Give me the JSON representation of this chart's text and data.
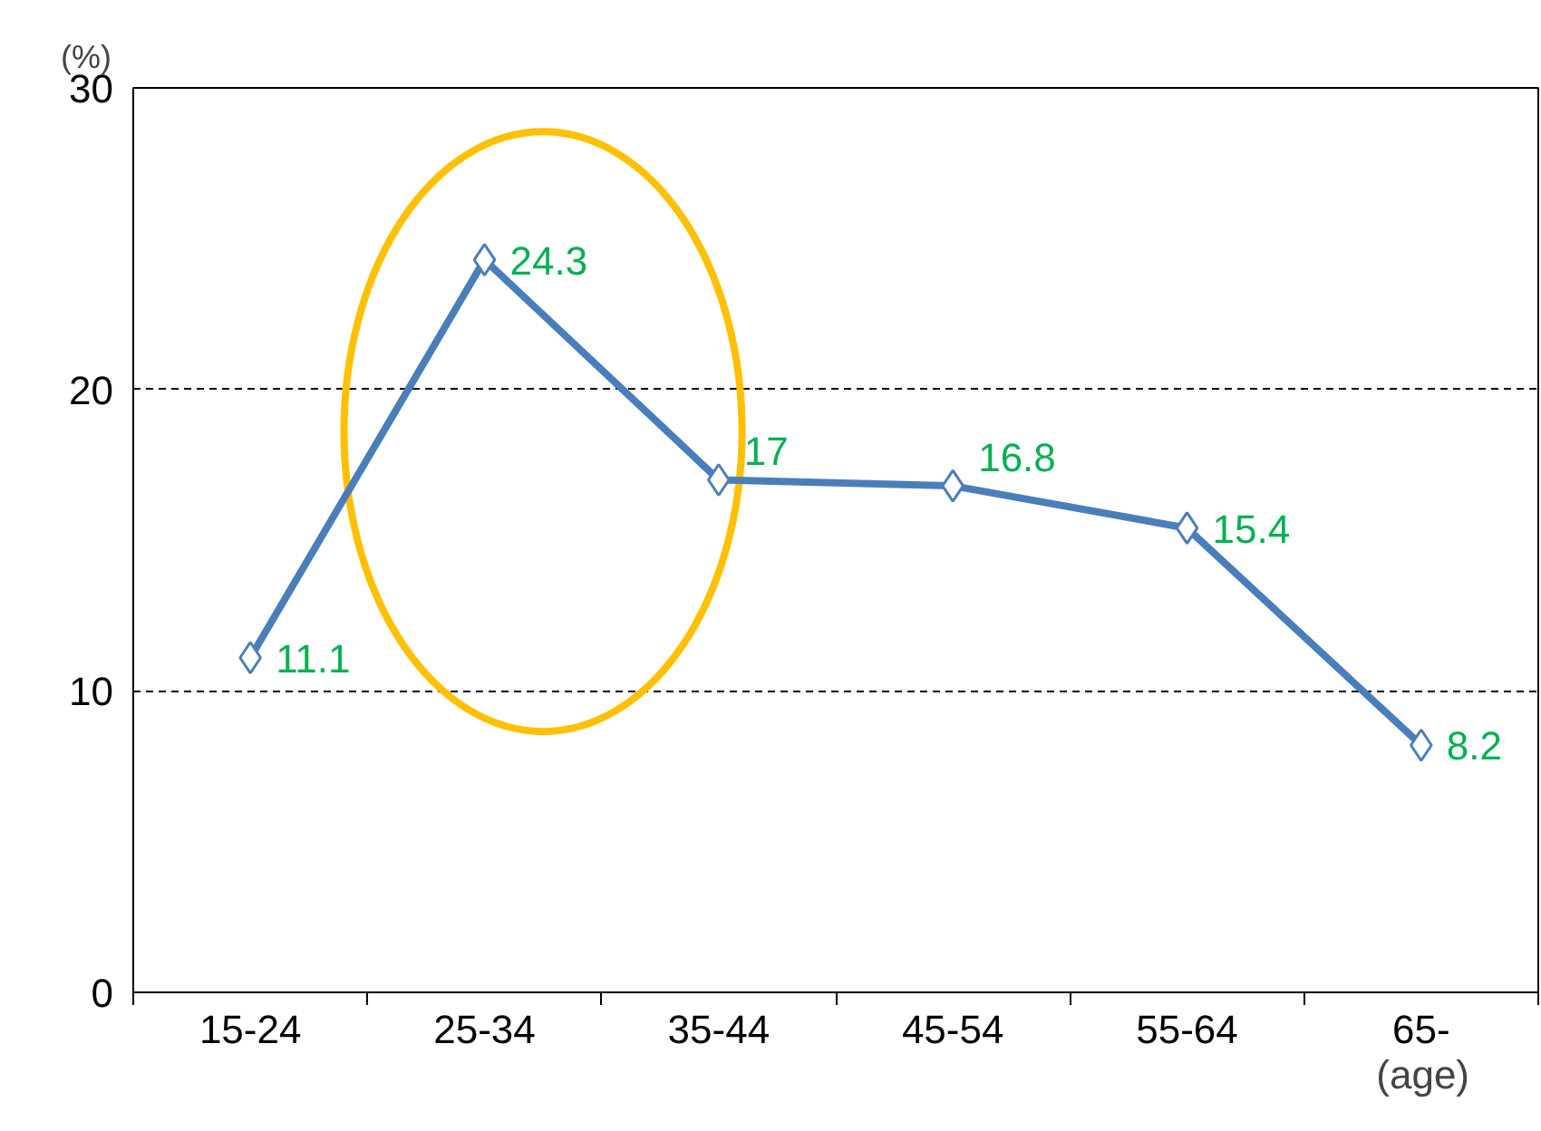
{
  "chart_data": {
    "type": "line",
    "categories": [
      "15-24",
      "25-34",
      "35-44",
      "45-54",
      "55-64",
      "65-"
    ],
    "series": [
      {
        "color": "#4a7ebb",
        "values": [
          11.1,
          24.3,
          17,
          16.8,
          15.4,
          8.2
        ]
      }
    ],
    "ylabel": "(%)",
    "xlabel": "(age)",
    "ylim": [
      0,
      30
    ],
    "yticks": [
      0,
      10,
      20,
      30
    ],
    "grid": "y",
    "marker": "diamond",
    "line_style": "solid",
    "data_labels": true
  }
}
